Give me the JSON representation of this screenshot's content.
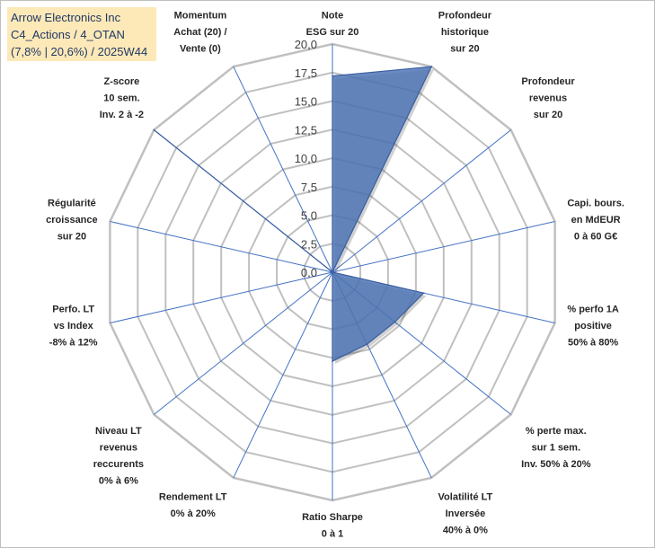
{
  "header": {
    "lines": [
      "Arrow Electronics Inc",
      "C4_Actions / 4_OTAN",
      "(7,8% | 20,6%) / 2025W44"
    ]
  },
  "colors": {
    "fill": "#4f76b6",
    "stroke": "#3b5fa0",
    "grid": "#c0c0c0",
    "spoke": "#4472c4",
    "title_bg": "#fde9b8"
  },
  "chart_data": {
    "type": "radar",
    "title": "",
    "rmin": 0,
    "rmax": 20,
    "ticks": [
      "0,0",
      "2,5",
      "5,0",
      "7,5",
      "10,0",
      "12,5",
      "15,0",
      "17,5",
      "20,0"
    ],
    "axes": [
      {
        "label": [
          "Note",
          "ESG sur 20"
        ],
        "value": 17.2
      },
      {
        "label": [
          "Profondeur",
          "historique",
          "sur 20"
        ],
        "value": 20.0
      },
      {
        "label": [
          "Profondeur",
          "revenus",
          "sur 20"
        ],
        "value": 0.0
      },
      {
        "label": [
          "Capi. bours.",
          "en MdEUR",
          "0 à 60 G€"
        ],
        "value": 0.0
      },
      {
        "label": [
          "% perfo 1A",
          "positive",
          "50% à 80%"
        ],
        "value": 8.2
      },
      {
        "label": [
          "% perte max.",
          "sur 1 sem.",
          "Inv. 50% à 20%"
        ],
        "value": 7.0
      },
      {
        "label": [
          "Volatilité LT",
          "Inversée",
          "40% à 0%"
        ],
        "value": 7.0
      },
      {
        "label": [
          "Ratio Sharpe",
          "0 à 1"
        ],
        "value": 7.8
      },
      {
        "label": [
          "Rendement LT",
          "0% à 20%"
        ],
        "value": 0.0
      },
      {
        "label": [
          "Niveau LT",
          "revenus",
          "reccurents",
          "0% à 6%"
        ],
        "value": 0.0
      },
      {
        "label": [
          "Perfo. LT",
          "vs Index",
          "-8% à 12%"
        ],
        "value": 0.0
      },
      {
        "label": [
          "Régularité",
          "croissance",
          "sur 20"
        ],
        "value": 0.0
      },
      {
        "label": [
          "Z-score",
          "10 sem.",
          "Inv. 2 à -2"
        ],
        "value": 20.0
      },
      {
        "label": [
          "Momentum",
          "Achat (20) /",
          "Vente (0)"
        ],
        "value": 0.0
      }
    ]
  }
}
